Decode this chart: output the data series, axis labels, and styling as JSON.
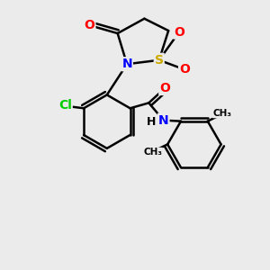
{
  "background_color": "#ebebeb",
  "bond_color": "#000000",
  "bond_width": 1.8,
  "atom_colors": {
    "C": "#000000",
    "H": "#000000",
    "N": "#0000ff",
    "O": "#ff0000",
    "S": "#ccaa00",
    "Cl": "#00cc00"
  },
  "font_size": 10
}
